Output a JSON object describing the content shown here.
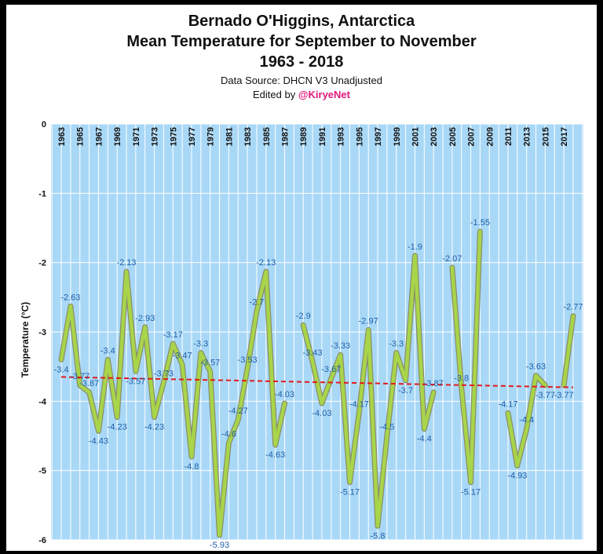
{
  "title_line1": "Bernado O'Higgins, Antarctica",
  "title_line2": "Mean Temperature for September to November",
  "title_line3": "1963 - 2018",
  "source": "Data Source: DHCN V3 Unadjusted",
  "edited_prefix": "Edited by ",
  "edited_handle": "@KiryeNet",
  "colors": {
    "plot_bg": "#a9d8f7",
    "grid": "#ffffff",
    "line_outer": "#8a8f6a",
    "line_inner": "#a8d54a",
    "trend": "#e21b1b",
    "label": "#1f5fa8",
    "handle": "#e0197d"
  },
  "chart_data": {
    "type": "line",
    "title": "Bernado O'Higgins, Antarctica Mean Temperature for September to November 1963 - 2018",
    "xlabel": "",
    "ylabel": "Temperature (°C)",
    "ylim": [
      -6,
      0
    ],
    "yticks": [
      0,
      -1,
      -2,
      -3,
      -4,
      -5,
      -6
    ],
    "xlim": [
      1963,
      2018
    ],
    "xticks": [
      1963,
      1965,
      1967,
      1969,
      1971,
      1973,
      1975,
      1977,
      1979,
      1981,
      1983,
      1985,
      1987,
      1989,
      1991,
      1993,
      1995,
      1997,
      1999,
      2001,
      2003,
      2005,
      2007,
      2009,
      2011,
      2013,
      2015,
      2017
    ],
    "grid": true,
    "series": [
      {
        "name": "Mean Temperature",
        "points": [
          [
            1963,
            -3.4
          ],
          [
            1964,
            -2.63
          ],
          [
            1965,
            -3.77
          ],
          [
            1966,
            -3.87
          ],
          [
            1967,
            -4.43
          ],
          [
            1968,
            -3.4
          ],
          [
            1969,
            -4.23
          ],
          [
            1970,
            -2.13
          ],
          [
            1971,
            -3.57
          ],
          [
            1972,
            -2.93
          ],
          [
            1973,
            -4.23
          ],
          [
            1974,
            -3.73
          ],
          [
            1975,
            -3.17
          ],
          [
            1976,
            -3.47
          ],
          [
            1977,
            -4.8
          ],
          [
            1978,
            -3.3
          ],
          [
            1979,
            -3.57
          ],
          [
            1980,
            -5.93
          ],
          [
            1981,
            -4.6
          ],
          [
            1982,
            -4.27
          ],
          [
            1983,
            -3.53
          ],
          [
            1984,
            -2.7
          ],
          [
            1985,
            -2.13
          ],
          [
            1986,
            -4.63
          ],
          [
            1987,
            -4.03
          ],
          [
            1988,
            null
          ],
          [
            1989,
            -2.9
          ],
          [
            1990,
            -3.43
          ],
          [
            1991,
            -4.03
          ],
          [
            1992,
            -3.67
          ],
          [
            1993,
            -3.33
          ],
          [
            1994,
            -5.17
          ],
          [
            1995,
            -4.17
          ],
          [
            1996,
            -2.97
          ],
          [
            1997,
            -5.8
          ],
          [
            1998,
            -4.5
          ],
          [
            1999,
            -3.3
          ],
          [
            2000,
            -3.7
          ],
          [
            2001,
            -1.9
          ],
          [
            2002,
            -4.4
          ],
          [
            2003,
            -3.87
          ],
          [
            2004,
            null
          ],
          [
            2005,
            -2.07
          ],
          [
            2006,
            -3.8
          ],
          [
            2007,
            -5.17
          ],
          [
            2008,
            -1.55
          ],
          [
            2009,
            null
          ],
          [
            2010,
            null
          ],
          [
            2011,
            -4.17
          ],
          [
            2012,
            -4.93
          ],
          [
            2013,
            -4.4
          ],
          [
            2014,
            -3.63
          ],
          [
            2015,
            -3.77
          ],
          [
            2016,
            null
          ],
          [
            2017,
            -3.77
          ],
          [
            2018,
            -2.77
          ]
        ]
      }
    ],
    "trend": {
      "name": "Linear trend",
      "start": [
        1963,
        -3.65
      ],
      "end": [
        2018,
        -3.8
      ]
    },
    "labels": [
      [
        1963,
        "-3.4"
      ],
      [
        1964,
        "-2.63"
      ],
      [
        1965,
        "-3.77"
      ],
      [
        1966,
        "-3.87"
      ],
      [
        1967,
        "-4.43"
      ],
      [
        1968,
        "-3.4"
      ],
      [
        1969,
        "-4.23"
      ],
      [
        1970,
        "-2.13"
      ],
      [
        1971,
        "-3.57"
      ],
      [
        1972,
        "-2.93"
      ],
      [
        1973,
        "-4.23"
      ],
      [
        1974,
        "-3.73"
      ],
      [
        1975,
        "-3.17"
      ],
      [
        1976,
        "-3.47"
      ],
      [
        1977,
        "-4.8"
      ],
      [
        1978,
        "-3.3"
      ],
      [
        1979,
        "-3.57"
      ],
      [
        1980,
        "-5.93"
      ],
      [
        1981,
        "-4.6"
      ],
      [
        1982,
        "-4.27"
      ],
      [
        1983,
        "-3.53"
      ],
      [
        1984,
        "-2.7"
      ],
      [
        1985,
        "-2.13"
      ],
      [
        1986,
        "-4.63"
      ],
      [
        1987,
        "-4.03"
      ],
      [
        1989,
        "-2.9"
      ],
      [
        1990,
        "-3.43"
      ],
      [
        1991,
        "-4.03"
      ],
      [
        1992,
        "-3.67"
      ],
      [
        1993,
        "-3.33"
      ],
      [
        1994,
        "-5.17"
      ],
      [
        1995,
        "-4.17"
      ],
      [
        1996,
        "-2.97"
      ],
      [
        1997,
        "-5.8"
      ],
      [
        1998,
        "-4.5"
      ],
      [
        1999,
        "-3.3"
      ],
      [
        2000,
        "-3.7"
      ],
      [
        2001,
        "-1.9"
      ],
      [
        2002,
        "-4.4"
      ],
      [
        2003,
        "-3.87"
      ],
      [
        2005,
        "-2.07"
      ],
      [
        2006,
        "-3.8"
      ],
      [
        2007,
        "-5.17"
      ],
      [
        2008,
        "-1.55"
      ],
      [
        2011,
        "-4.17"
      ],
      [
        2012,
        "-4.93"
      ],
      [
        2013,
        "-4.4"
      ],
      [
        2014,
        "-3.63"
      ],
      [
        2015,
        "-3.77"
      ],
      [
        2017,
        "-3.77"
      ],
      [
        2018,
        "-2.77"
      ]
    ]
  }
}
